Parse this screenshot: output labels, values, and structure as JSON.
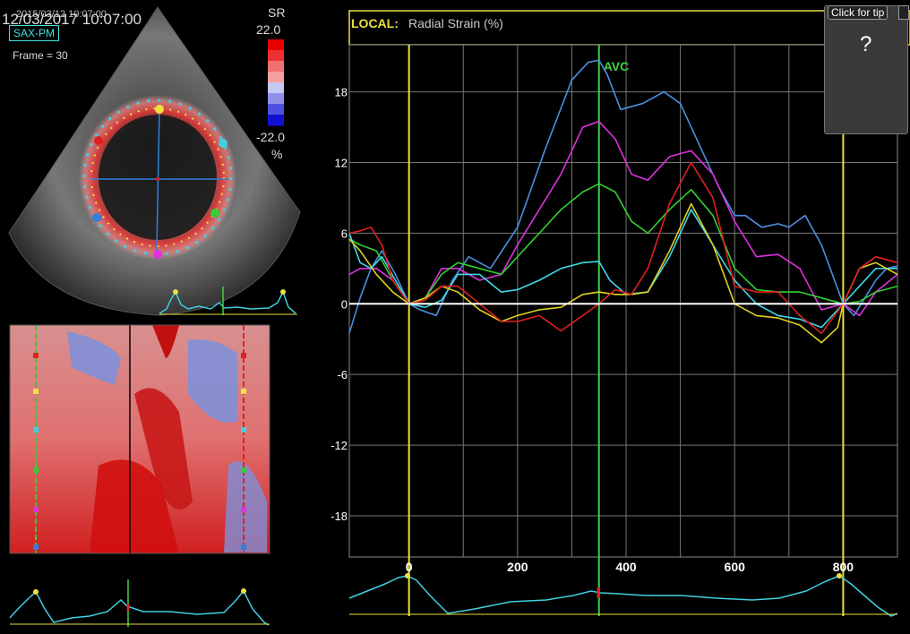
{
  "header": {
    "timestamp": "12/03/2017 10:07:00",
    "timestamp_secondary": "2015/03/12 10:07:00",
    "view_label": "SAX-PM",
    "frame_label": "Frame = 30"
  },
  "scale": {
    "title": "SR",
    "max_label": "22.0",
    "min_label": "-22.0",
    "unit": "%",
    "colors": [
      "#e80000",
      "#ee3030",
      "#f07070",
      "#f4a0a0",
      "#c8c8f4",
      "#9090e8",
      "#5050e0",
      "#1010d0"
    ]
  },
  "chart_header": {
    "prefix": "LOCAL:",
    "title": "Radial Strain (%)"
  },
  "tip": {
    "button_label": "Click for tip",
    "question": "?"
  },
  "chart_data": {
    "type": "line",
    "title": "Radial Strain (%)",
    "x_tick_labels": [
      "0",
      "200",
      "400",
      "600",
      "800"
    ],
    "x_ticks": [
      0,
      200,
      400,
      600,
      800
    ],
    "y_tick_labels": [
      "18",
      "12",
      "6",
      "0",
      "-6",
      "-12",
      "-18"
    ],
    "y_ticks": [
      18,
      12,
      6,
      0,
      -6,
      -12,
      -18
    ],
    "xlim": [
      -110,
      900
    ],
    "ylim": [
      -21.5,
      22
    ],
    "grid": true,
    "event_markers": [
      {
        "x": 0,
        "color": "#e8e040"
      },
      {
        "x": 350,
        "color": "#40d040",
        "label": "AVC"
      },
      {
        "x": 800,
        "color": "#e8e040"
      }
    ],
    "series": [
      {
        "color": "#4a90e0",
        "x": [
          -110,
          -90,
          -70,
          -50,
          -25,
          0,
          20,
          50,
          80,
          110,
          150,
          200,
          250,
          300,
          330,
          350,
          365,
          390,
          430,
          470,
          500,
          530,
          570,
          600,
          620,
          650,
          680,
          700,
          730,
          760,
          800,
          820,
          840,
          860,
          880,
          900
        ],
        "y": [
          -2.5,
          0.5,
          3,
          4.5,
          2.5,
          0,
          -0.5,
          -1,
          2,
          4,
          3,
          6.5,
          13,
          19,
          20.5,
          20.7,
          19.5,
          16.5,
          17,
          18,
          17,
          14,
          10,
          7.5,
          7.5,
          6.5,
          6.8,
          6.5,
          7.5,
          5,
          0,
          -1,
          0.5,
          2,
          3,
          3.2
        ]
      },
      {
        "color": "#e030e0",
        "x": [
          -110,
          -90,
          -60,
          -30,
          0,
          30,
          60,
          90,
          130,
          170,
          200,
          240,
          280,
          320,
          350,
          380,
          410,
          440,
          480,
          520,
          560,
          600,
          640,
          680,
          720,
          760,
          800,
          830,
          860,
          900
        ],
        "y": [
          2.5,
          3,
          3,
          2,
          0,
          0.5,
          3,
          3,
          2,
          2.5,
          5,
          8,
          11,
          15,
          15.5,
          14,
          11,
          10.5,
          12.5,
          13,
          11,
          7,
          4,
          4.2,
          3,
          -0.5,
          0,
          -1,
          1,
          2.5
        ]
      },
      {
        "color": "#30d030",
        "x": [
          -110,
          -90,
          -60,
          -30,
          0,
          30,
          60,
          90,
          130,
          170,
          200,
          240,
          280,
          320,
          350,
          380,
          410,
          440,
          480,
          520,
          560,
          600,
          640,
          680,
          720,
          760,
          800,
          830,
          860,
          900
        ],
        "y": [
          5.5,
          5,
          4.5,
          2,
          0,
          0.5,
          2.5,
          3.5,
          3,
          2.5,
          4,
          6,
          8,
          9.5,
          10.2,
          9.5,
          7,
          6,
          8,
          9.7,
          7.5,
          3,
          1.2,
          1,
          1,
          0.5,
          0,
          0.2,
          1,
          1.5
        ]
      },
      {
        "color": "#40d8e8",
        "x": [
          -110,
          -90,
          -70,
          -50,
          -25,
          0,
          30,
          60,
          90,
          130,
          170,
          200,
          240,
          280,
          320,
          350,
          370,
          400,
          440,
          480,
          520,
          560,
          600,
          640,
          680,
          720,
          760,
          800,
          830,
          860,
          900
        ],
        "y": [
          6,
          3.5,
          3,
          4,
          2,
          0,
          -0.3,
          0.3,
          2.5,
          2.5,
          1,
          1.2,
          2,
          3,
          3.5,
          3.6,
          2,
          0.8,
          1,
          4,
          8,
          5,
          2,
          0,
          -1,
          -1.3,
          -2,
          0,
          1.5,
          3,
          3
        ]
      },
      {
        "color": "#e0d020",
        "x": [
          -110,
          -90,
          -60,
          -30,
          0,
          30,
          60,
          90,
          130,
          170,
          200,
          240,
          280,
          320,
          350,
          380,
          410,
          440,
          480,
          520,
          560,
          600,
          640,
          680,
          720,
          760,
          790,
          800,
          830,
          860,
          900
        ],
        "y": [
          5.5,
          4.5,
          2.5,
          1,
          0,
          0.5,
          1.5,
          1,
          -0.5,
          -1.5,
          -1,
          -0.5,
          -0.3,
          0.8,
          1,
          0.8,
          0.8,
          1,
          4.5,
          8.5,
          5,
          0,
          -1,
          -1.2,
          -1.8,
          -3.3,
          -2,
          0,
          3,
          3.5,
          2.5
        ]
      },
      {
        "color": "#e02020",
        "x": [
          -110,
          -90,
          -70,
          -50,
          -30,
          0,
          30,
          60,
          90,
          130,
          170,
          200,
          240,
          280,
          320,
          350,
          380,
          410,
          440,
          480,
          520,
          560,
          600,
          640,
          680,
          720,
          760,
          800,
          830,
          860,
          900
        ],
        "y": [
          6,
          6.2,
          6.5,
          5,
          2,
          0,
          0.3,
          1.5,
          1.5,
          0,
          -1.5,
          -1.5,
          -1,
          -2.3,
          -1,
          0,
          1.2,
          0.8,
          3,
          8.5,
          12,
          9,
          1.5,
          1,
          1,
          -1,
          -2.5,
          0,
          3,
          4,
          3.5
        ]
      },
      {
        "color": "#ffffff",
        "x": [
          -110,
          900
        ],
        "y": [
          0,
          0
        ]
      }
    ]
  }
}
